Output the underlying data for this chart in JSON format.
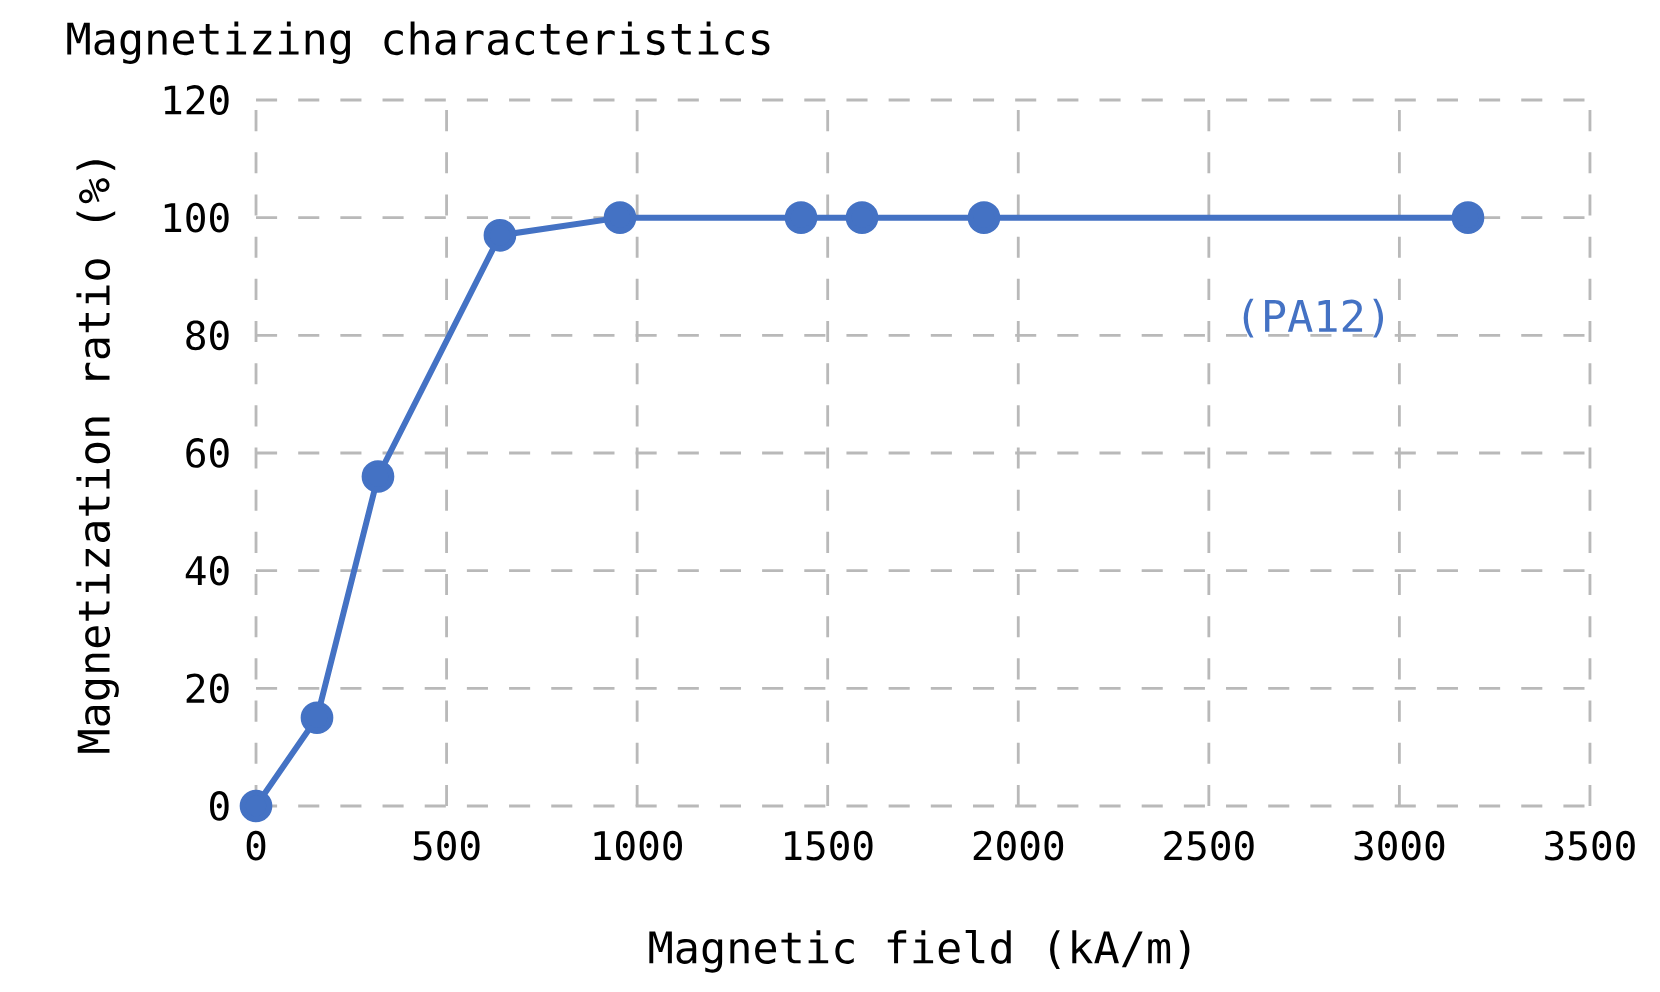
{
  "chart_data": {
    "type": "line",
    "title": "Magnetizing characteristics",
    "xlabel": "Magnetic field (kA/m)",
    "ylabel": "Magnetization ratio (%)",
    "xlim": [
      0,
      3500
    ],
    "xticks": [
      0,
      500,
      1000,
      1500,
      2000,
      2500,
      3000,
      3500
    ],
    "ylim": [
      0,
      120
    ],
    "yticks": [
      0,
      20,
      40,
      60,
      80,
      100,
      120
    ],
    "grid": true,
    "marker": "circle",
    "line_style": "solid",
    "series": [
      {
        "name": "(PA12)",
        "color": "#4472c4",
        "x": [
          0,
          160,
          320,
          640,
          955,
          1430,
          1590,
          1910,
          3180
        ],
        "values": [
          0,
          15,
          56,
          97,
          100,
          100,
          100,
          100,
          100
        ]
      }
    ]
  }
}
